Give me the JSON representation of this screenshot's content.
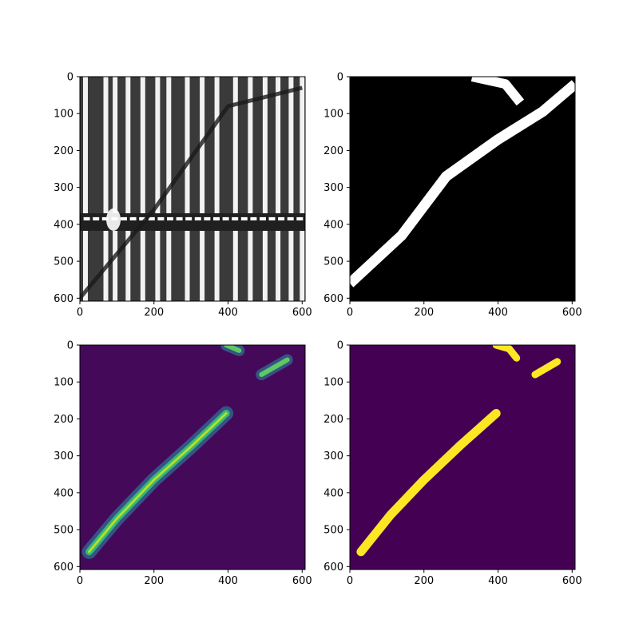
{
  "figure": {
    "layout": "2x2 image grid",
    "background": "#ffffff"
  },
  "chart_data": [
    {
      "type": "heatmap",
      "panel": "top-left",
      "xlim": [
        0,
        608
      ],
      "ylim": [
        608,
        0
      ],
      "xticks": [
        0,
        200,
        400,
        600
      ],
      "yticks": [
        0,
        100,
        200,
        300,
        400,
        500,
        600
      ],
      "colormap": "gray",
      "content": {
        "background": "#3a3a3a",
        "vertical_stripes_x": [
          15,
          70,
          95,
          130,
          170,
          210,
          240,
          290,
          330,
          370,
          420,
          460,
          500,
          535,
          570,
          600
        ],
        "horizontal_band_y": 385,
        "diagonal_crack": [
          [
            0,
            600
          ],
          [
            200,
            360
          ],
          [
            400,
            80
          ],
          [
            600,
            30
          ]
        ]
      }
    },
    {
      "type": "heatmap",
      "panel": "top-right",
      "xlim": [
        0,
        608
      ],
      "ylim": [
        608,
        0
      ],
      "xticks": [
        0,
        200,
        400,
        600
      ],
      "yticks": [
        0,
        100,
        200,
        300,
        400,
        500,
        600
      ],
      "colormap": "gray",
      "content": {
        "background": "#000000",
        "mask_color": "#ffffff",
        "crack_band": [
          [
            0,
            560
          ],
          [
            140,
            430
          ],
          [
            260,
            270
          ],
          [
            400,
            170
          ],
          [
            520,
            95
          ],
          [
            608,
            20
          ]
        ],
        "top_fragment": [
          [
            330,
            0
          ],
          [
            420,
            20
          ],
          [
            460,
            70
          ]
        ]
      }
    },
    {
      "type": "heatmap",
      "panel": "bottom-left",
      "xlim": [
        0,
        608
      ],
      "ylim": [
        608,
        0
      ],
      "xticks": [
        0,
        200,
        400,
        600
      ],
      "yticks": [
        0,
        100,
        200,
        300,
        400,
        500,
        600
      ],
      "colormap": "viridis",
      "content": {
        "background": "#45095a",
        "crack_path": [
          [
            25,
            560
          ],
          [
            100,
            470
          ],
          [
            200,
            365
          ],
          [
            300,
            275
          ],
          [
            395,
            185
          ]
        ],
        "top_fragments": [
          [
            [
              395,
              0
            ],
            [
              430,
              15
            ]
          ],
          [
            [
              490,
              80
            ],
            [
              560,
              40
            ]
          ]
        ]
      }
    },
    {
      "type": "heatmap",
      "panel": "bottom-right",
      "xlim": [
        0,
        608
      ],
      "ylim": [
        608,
        0
      ],
      "xticks": [
        0,
        200,
        400,
        600
      ],
      "yticks": [
        0,
        100,
        200,
        300,
        400,
        500,
        600
      ],
      "colormap": "viridis",
      "content": {
        "background": "#440154",
        "mask_color": "#fde725",
        "crack_path": [
          [
            30,
            560
          ],
          [
            110,
            460
          ],
          [
            200,
            365
          ],
          [
            300,
            270
          ],
          [
            395,
            185
          ]
        ],
        "top_fragments": [
          [
            [
              395,
              0
            ],
            [
              430,
              10
            ],
            [
              450,
              35
            ]
          ],
          [
            [
              500,
              80
            ],
            [
              560,
              45
            ]
          ]
        ]
      }
    }
  ]
}
